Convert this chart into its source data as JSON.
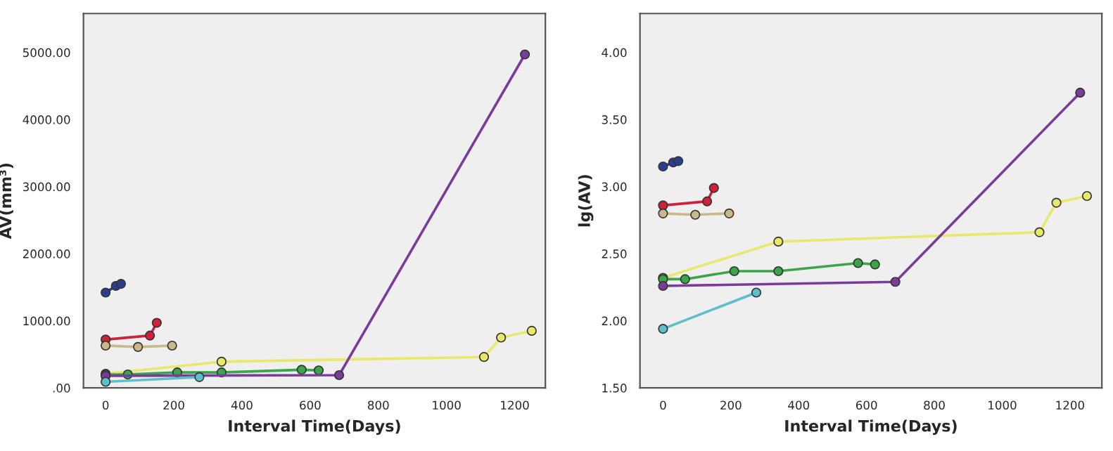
{
  "chart_data": [
    {
      "type": "line",
      "xlabel": "Interval Time(Days)",
      "ylabel": "AV(mm³)",
      "xlim": [
        -65,
        1290
      ],
      "ylim": [
        0,
        5580
      ],
      "xticks": [
        0,
        200,
        400,
        600,
        800,
        1000,
        1200
      ],
      "yticks": [
        {
          "value": 0,
          "label": ".00"
        },
        {
          "value": 1000,
          "label": "1000.00"
        },
        {
          "value": 2000,
          "label": "2000.00"
        },
        {
          "value": 3000,
          "label": "3000.00"
        },
        {
          "value": 4000,
          "label": "4000.00"
        },
        {
          "value": 5000,
          "label": "5000.00"
        }
      ],
      "marker": "circle",
      "grid": false,
      "series": [
        {
          "color": "#2b3d8f",
          "x": [
            0,
            30,
            45
          ],
          "values": [
            1420,
            1520,
            1550
          ]
        },
        {
          "color": "#d0203a",
          "x": [
            0,
            130,
            150
          ],
          "values": [
            720,
            780,
            970
          ]
        },
        {
          "color": "#c8b98a",
          "x": [
            0,
            95,
            195
          ],
          "values": [
            630,
            610,
            630
          ]
        },
        {
          "color": "#e8e86a",
          "x": [
            0,
            340,
            1110,
            1160,
            1250
          ],
          "values": [
            210,
            390,
            460,
            750,
            850
          ]
        },
        {
          "color": "#3aa64a",
          "x": [
            0,
            65,
            210,
            340,
            575,
            625
          ],
          "values": [
            200,
            200,
            230,
            230,
            270,
            260
          ]
        },
        {
          "color": "#7a3c9a",
          "x": [
            0,
            685,
            1230
          ],
          "values": [
            180,
            190,
            4970
          ]
        },
        {
          "color": "#5cc0c8",
          "x": [
            0,
            275
          ],
          "values": [
            90,
            160
          ]
        }
      ]
    },
    {
      "type": "line",
      "xlabel": "Interval Time(Days)",
      "ylabel": "lg(AV)",
      "xlim": [
        -68,
        1294
      ],
      "ylim": [
        1.5,
        4.29
      ],
      "xticks": [
        0,
        200,
        400,
        600,
        800,
        1000,
        1200
      ],
      "yticks": [
        {
          "value": 1.5,
          "label": "1.50"
        },
        {
          "value": 2.0,
          "label": "2.00"
        },
        {
          "value": 2.5,
          "label": "2.50"
        },
        {
          "value": 3.0,
          "label": "3.00"
        },
        {
          "value": 3.5,
          "label": "3.50"
        },
        {
          "value": 4.0,
          "label": "4.00"
        }
      ],
      "marker": "circle",
      "grid": false,
      "series": [
        {
          "color": "#2b3d8f",
          "x": [
            0,
            30,
            45
          ],
          "values": [
            3.15,
            3.18,
            3.19
          ]
        },
        {
          "color": "#d0203a",
          "x": [
            0,
            130,
            150
          ],
          "values": [
            2.86,
            2.89,
            2.99
          ]
        },
        {
          "color": "#c8b98a",
          "x": [
            0,
            95,
            195
          ],
          "values": [
            2.8,
            2.79,
            2.8
          ]
        },
        {
          "color": "#e8e86a",
          "x": [
            0,
            340,
            1110,
            1160,
            1250
          ],
          "values": [
            2.32,
            2.59,
            2.66,
            2.88,
            2.93
          ]
        },
        {
          "color": "#3aa64a",
          "x": [
            0,
            65,
            210,
            340,
            575,
            625
          ],
          "values": [
            2.31,
            2.31,
            2.37,
            2.37,
            2.43,
            2.42
          ]
        },
        {
          "color": "#7a3c9a",
          "x": [
            0,
            685,
            1230
          ],
          "values": [
            2.26,
            2.29,
            3.7
          ]
        },
        {
          "color": "#5cc0c8",
          "x": [
            0,
            275
          ],
          "values": [
            1.94,
            2.21
          ]
        }
      ]
    }
  ]
}
